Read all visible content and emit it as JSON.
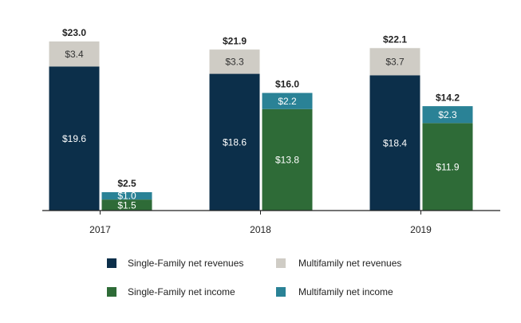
{
  "chart_data": {
    "type": "stacked-grouped-bar",
    "categories": [
      "2017",
      "2018",
      "2019"
    ],
    "series": [
      {
        "name": "Single-Family net revenues",
        "color": "#0c2f4a",
        "stack": 0,
        "values": [
          19.6,
          18.6,
          18.4
        ],
        "value_labels": [
          "$19.6",
          "$18.6",
          "$18.4"
        ]
      },
      {
        "name": "Multifamily net revenues",
        "color": "#cfccc5",
        "stack": 0,
        "values": [
          3.4,
          3.3,
          3.7
        ],
        "value_labels": [
          "$3.4",
          "$3.3",
          "$3.7"
        ]
      },
      {
        "name": "Single-Family net income",
        "color": "#2e6b37",
        "stack": 1,
        "values": [
          1.5,
          13.8,
          11.9
        ],
        "value_labels": [
          "$1.5",
          "$13.8",
          "$11.9"
        ]
      },
      {
        "name": "Multifamily net income",
        "color": "#2a8296",
        "stack": 1,
        "values": [
          1.0,
          2.2,
          2.3
        ],
        "value_labels": [
          "$1.0",
          "$2.2",
          "$2.3"
        ]
      }
    ],
    "totals": [
      {
        "values": [
          23.0,
          21.9,
          22.1
        ],
        "value_labels": [
          "$23.0",
          "$21.9",
          "$22.1"
        ]
      },
      {
        "values": [
          2.5,
          16.0,
          14.2
        ],
        "value_labels": [
          "$2.5",
          "$16.0",
          "$14.2"
        ]
      }
    ]
  }
}
